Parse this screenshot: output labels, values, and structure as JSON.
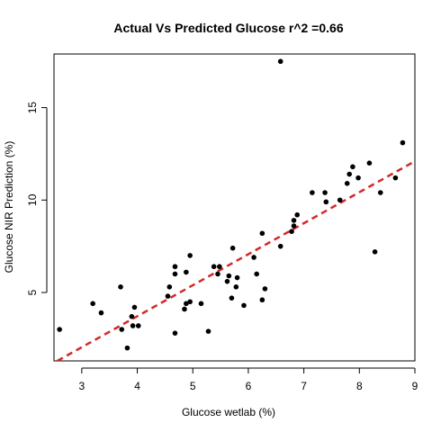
{
  "chart_data": {
    "type": "scatter",
    "title": "Actual Vs Predicted Glucose r^2 =0.66",
    "xlabel": "Glucose wetlab (%)",
    "ylabel": "Glucose NIR Prediction (%)",
    "xlim": [
      2.5,
      9
    ],
    "ylim": [
      1.3,
      17.9
    ],
    "xticks": [
      3,
      4,
      5,
      6,
      7,
      8,
      9
    ],
    "yticks": [
      5,
      10,
      15
    ],
    "grid": false,
    "colors": {
      "points": "#000000",
      "fit_line": "#d62728"
    },
    "fit_line": {
      "x": [
        2.5,
        9
      ],
      "y": [
        1.2,
        12.1
      ],
      "style": "dashed"
    },
    "points": [
      {
        "x": 2.6,
        "y": 3.0
      },
      {
        "x": 3.2,
        "y": 4.4
      },
      {
        "x": 3.35,
        "y": 3.9
      },
      {
        "x": 3.7,
        "y": 5.3
      },
      {
        "x": 3.72,
        "y": 3.0
      },
      {
        "x": 3.82,
        "y": 2.0
      },
      {
        "x": 3.9,
        "y": 3.7
      },
      {
        "x": 3.92,
        "y": 3.2
      },
      {
        "x": 3.95,
        "y": 4.2
      },
      {
        "x": 4.02,
        "y": 3.2
      },
      {
        "x": 4.55,
        "y": 4.8
      },
      {
        "x": 4.58,
        "y": 5.3
      },
      {
        "x": 4.68,
        "y": 6.0
      },
      {
        "x": 4.68,
        "y": 6.4
      },
      {
        "x": 4.68,
        "y": 2.8
      },
      {
        "x": 4.85,
        "y": 4.1
      },
      {
        "x": 4.88,
        "y": 4.4
      },
      {
        "x": 4.88,
        "y": 6.1
      },
      {
        "x": 4.95,
        "y": 4.5
      },
      {
        "x": 4.95,
        "y": 7.0
      },
      {
        "x": 5.15,
        "y": 4.4
      },
      {
        "x": 5.28,
        "y": 2.9
      },
      {
        "x": 5.38,
        "y": 6.4
      },
      {
        "x": 5.45,
        "y": 6.0
      },
      {
        "x": 5.48,
        "y": 6.4
      },
      {
        "x": 5.62,
        "y": 5.6
      },
      {
        "x": 5.65,
        "y": 5.9
      },
      {
        "x": 5.7,
        "y": 4.7
      },
      {
        "x": 5.72,
        "y": 7.4
      },
      {
        "x": 5.78,
        "y": 5.3
      },
      {
        "x": 5.8,
        "y": 5.8
      },
      {
        "x": 5.92,
        "y": 4.3
      },
      {
        "x": 6.1,
        "y": 6.9
      },
      {
        "x": 6.15,
        "y": 6.0
      },
      {
        "x": 6.25,
        "y": 4.6
      },
      {
        "x": 6.25,
        "y": 8.2
      },
      {
        "x": 6.3,
        "y": 5.2
      },
      {
        "x": 6.58,
        "y": 7.5
      },
      {
        "x": 6.58,
        "y": 17.5
      },
      {
        "x": 6.78,
        "y": 8.3
      },
      {
        "x": 6.82,
        "y": 8.6
      },
      {
        "x": 6.82,
        "y": 8.9
      },
      {
        "x": 6.88,
        "y": 9.2
      },
      {
        "x": 7.15,
        "y": 10.4
      },
      {
        "x": 7.38,
        "y": 10.4
      },
      {
        "x": 7.4,
        "y": 9.9
      },
      {
        "x": 7.65,
        "y": 10.0
      },
      {
        "x": 7.78,
        "y": 10.9
      },
      {
        "x": 7.82,
        "y": 11.4
      },
      {
        "x": 7.88,
        "y": 11.8
      },
      {
        "x": 7.98,
        "y": 11.2
      },
      {
        "x": 8.18,
        "y": 12.0
      },
      {
        "x": 8.28,
        "y": 7.2
      },
      {
        "x": 8.38,
        "y": 10.4
      },
      {
        "x": 8.65,
        "y": 11.2
      },
      {
        "x": 8.78,
        "y": 13.1
      }
    ]
  }
}
